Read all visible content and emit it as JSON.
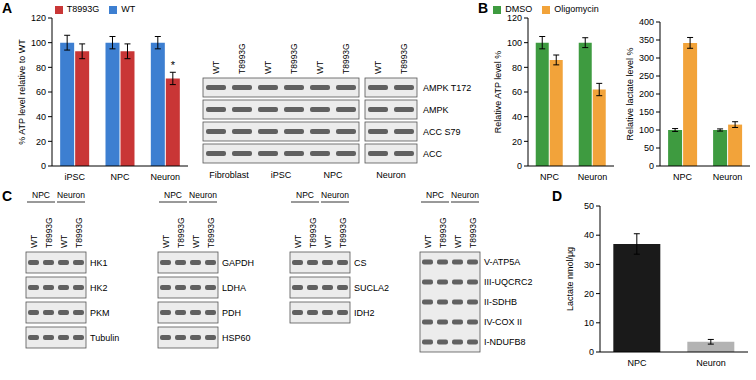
{
  "panel_labels": [
    "A",
    "B",
    "C",
    "D"
  ],
  "chart_data": [
    {
      "type": "bar",
      "y_label": "% ATP level relative to WT",
      "categories": [
        "iPSC",
        "NPC",
        "Neuron"
      ],
      "series": [
        {
          "name": "WT",
          "color": "#3d7fd1",
          "values": [
            100,
            100,
            100
          ],
          "errors": [
            6,
            5,
            5
          ]
        },
        {
          "name": "T8993G",
          "color": "#c93636",
          "values": [
            93,
            93,
            71
          ],
          "errors": [
            6,
            6,
            5
          ]
        }
      ],
      "ylim": [
        0,
        120
      ],
      "yticks": [
        0,
        20,
        40,
        60,
        80,
        100,
        120
      ],
      "legend": "top",
      "annotations": [
        {
          "category": "Neuron",
          "series": "T8993G",
          "text": "*"
        }
      ]
    },
    {
      "type": "bar",
      "y_label": "Relative ATP level %",
      "categories": [
        "NPC",
        "Neuron"
      ],
      "series": [
        {
          "name": "DMSO",
          "color": "#3e9b40",
          "values": [
            100,
            100
          ],
          "errors": [
            5,
            4
          ]
        },
        {
          "name": "Oligomycin",
          "color": "#f2a33a",
          "values": [
            86,
            62
          ],
          "errors": [
            4,
            5
          ]
        }
      ],
      "ylim": [
        0,
        120
      ],
      "yticks": [
        0,
        20,
        40,
        60,
        80,
        100,
        120
      ],
      "legend": "top"
    },
    {
      "type": "bar",
      "y_label": "Relative lactate level %",
      "categories": [
        "NPC",
        "Neuron"
      ],
      "series": [
        {
          "name": "DMSO",
          "color": "#3e9b40",
          "values": [
            100,
            100
          ],
          "errors": [
            4,
            3
          ]
        },
        {
          "name": "Oligomycin",
          "color": "#f2a33a",
          "values": [
            342,
            115
          ],
          "errors": [
            15,
            8
          ]
        }
      ],
      "ylim": [
        0,
        400
      ],
      "yticks": [
        0,
        50,
        100,
        150,
        200,
        250,
        300,
        350,
        400
      ]
    },
    {
      "type": "bar",
      "y_label": "Lactate nmol/μg",
      "categories": [
        "NPC",
        "Neuron"
      ],
      "values": [
        37,
        3.5
      ],
      "errors": [
        3.5,
        0.8
      ],
      "colors": [
        "#1a1a1a",
        "#b3b3b3"
      ],
      "ylim": [
        0,
        50
      ],
      "yticks": [
        0,
        10,
        20,
        30,
        40,
        50
      ]
    }
  ],
  "blots": {
    "A": {
      "blocks": [
        {
          "groups": [
            {
              "label": "Fibroblast",
              "lanes": [
                "WT",
                "T8993G"
              ]
            },
            {
              "label": "iPSC",
              "lanes": [
                "WT",
                "T8993G"
              ]
            },
            {
              "label": "NPC",
              "lanes": [
                "WT",
                "T8993G"
              ]
            }
          ]
        },
        {
          "groups": [
            {
              "label": "Neuron",
              "lanes": [
                "WT",
                "T8993G"
              ]
            }
          ]
        }
      ],
      "rows": [
        "AMPK T172",
        "AMPK",
        "ACC S79",
        "ACC"
      ]
    },
    "C": [
      {
        "groups": [
          {
            "label": "NPC",
            "lanes": [
              "WT",
              "T8993G"
            ]
          },
          {
            "label": "Neuron",
            "lanes": [
              "WT",
              "T8993G"
            ]
          }
        ],
        "rows": [
          "HK1",
          "HK2",
          "PKM",
          "Tubulin"
        ]
      },
      {
        "groups": [
          {
            "label": "NPC",
            "lanes": [
              "WT",
              "T8993G"
            ]
          },
          {
            "label": "Neuron",
            "lanes": [
              "WT",
              "T8993G"
            ]
          }
        ],
        "rows": [
          "GAPDH",
          "LDHA",
          "PDH",
          "HSP60"
        ]
      },
      {
        "groups": [
          {
            "label": "NPC",
            "lanes": [
              "WT",
              "T8993G"
            ]
          },
          {
            "label": "Neuron",
            "lanes": [
              "WT",
              "T8993G"
            ]
          }
        ],
        "rows": [
          "CS",
          "SUCLA2",
          "IDH2"
        ]
      },
      {
        "groups": [
          {
            "label": "NPC",
            "lanes": [
              "WT",
              "T8993G"
            ]
          },
          {
            "label": "Neuron",
            "lanes": [
              "WT",
              "T8993G"
            ]
          }
        ],
        "bands": [
          "V-ATP5A",
          "III-UQCRC2",
          "II-SDHB",
          "IV-COX II",
          "I-NDUFB8"
        ]
      }
    ]
  }
}
